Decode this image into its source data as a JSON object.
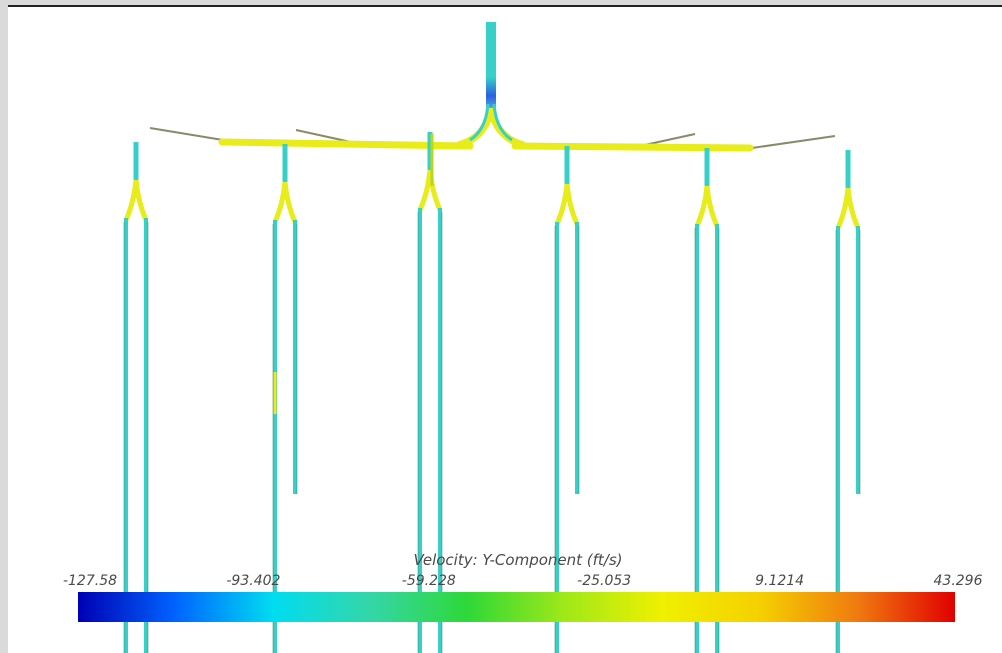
{
  "colorbar": {
    "title": "Velocity: Y-Component (ft/s)",
    "min": -127.58,
    "max": 43.296,
    "tick_labels": [
      "-127.58",
      "-93.402",
      "-59.228",
      "-25.053",
      "9.1214",
      "43.296"
    ],
    "colors": [
      "#0000b4",
      "#0064ff",
      "#00dcf0",
      "#34d6a8",
      "#2ed838",
      "#a0e818",
      "#f0f000",
      "#f5d000",
      "#f07a10",
      "#e00000"
    ]
  },
  "colors": {
    "background": "#dadada",
    "canvas": "#ffffff",
    "pipe_stem": "#36d0c8",
    "pipe_header": "#e8ec1a",
    "pipe_inlet": "#2a60e0",
    "pipe_outline": "#3a7a50",
    "pipe_stub": "#8a8a6a"
  }
}
